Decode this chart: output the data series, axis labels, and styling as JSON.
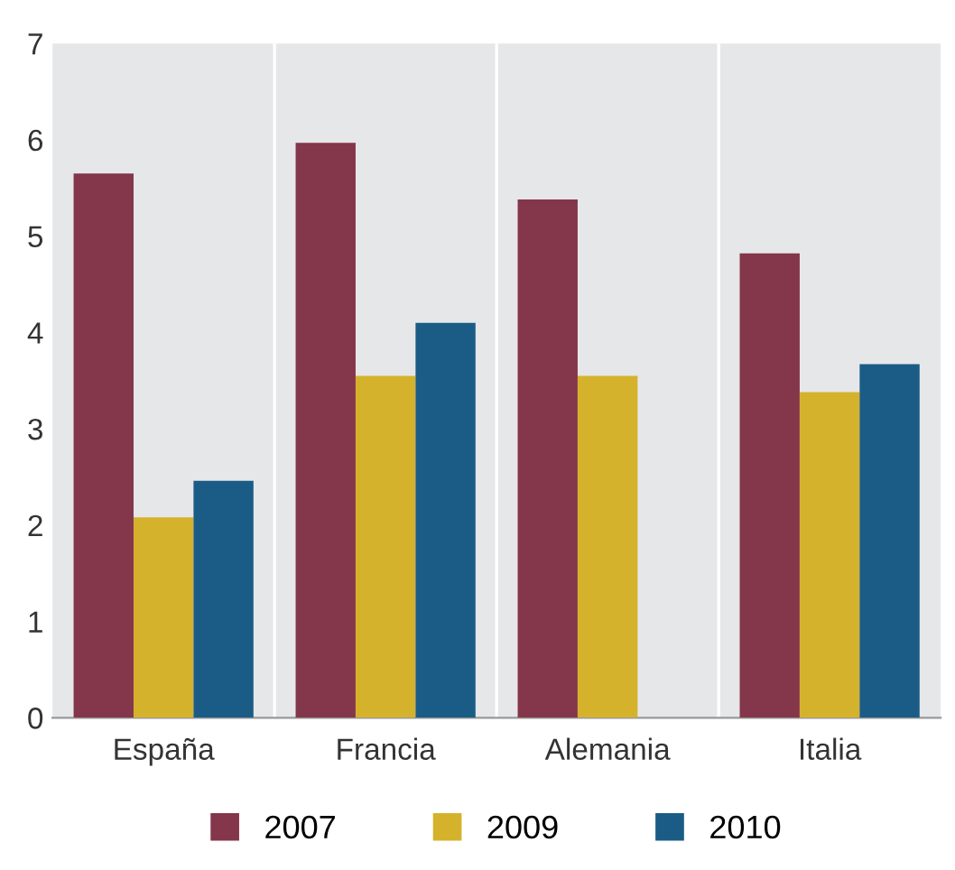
{
  "chart_data": {
    "type": "bar",
    "categories": [
      "España",
      "Francia",
      "Alemania",
      "Italia"
    ],
    "series": [
      {
        "name": "2007",
        "color": "#84364a",
        "values": [
          5.65,
          5.97,
          5.38,
          4.82
        ]
      },
      {
        "name": "2009",
        "color": "#d5b22b",
        "values": [
          2.08,
          3.55,
          3.55,
          3.38
        ]
      },
      {
        "name": "2010",
        "color": "#1b5c86",
        "values": [
          2.46,
          4.1,
          null,
          3.67
        ]
      }
    ],
    "ylim": [
      0,
      7
    ],
    "yticks": [
      0,
      1,
      2,
      3,
      4,
      5,
      6,
      7
    ],
    "grid": "x",
    "legend": "bottom"
  }
}
